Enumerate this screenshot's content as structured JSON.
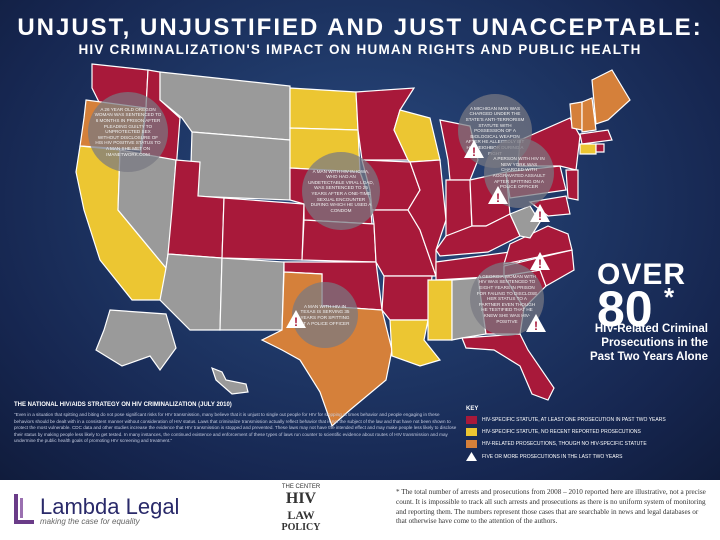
{
  "header": {
    "title": "UNJUST, UNJUSTIFIED AND JUST UNACCEPTABLE:",
    "subtitle": "HIV CRIMINALIZATION'S IMPACT ON HUMAN RIGHTS AND PUBLIC HEALTH"
  },
  "colors": {
    "red": "#a8193a",
    "orange": "#d5803a",
    "yellow": "#ecc632",
    "gray": "#9a9a9a",
    "background": "#1c2c58"
  },
  "map": {
    "legend_key": "state category shown by fill color",
    "states": {
      "red": [
        "WA",
        "ID",
        "MT",
        "ND",
        "MN",
        "NE",
        "KS",
        "OK",
        "MO",
        "AR",
        "LA",
        "MS",
        "TN",
        "KY",
        "IL",
        "IN",
        "OH",
        "VA",
        "NC",
        "SC",
        "FL",
        "MI",
        "MD",
        "NJ",
        "DE",
        "UT",
        "NV",
        "CO"
      ],
      "orange": [
        "OR",
        "TX",
        "GA",
        "NY",
        "PA",
        "IA",
        "KS_E"
      ],
      "yellow": [
        "WY",
        "SD",
        "WI",
        "CA",
        "AZ",
        "AL",
        "CT"
      ],
      "gray": [
        "NM",
        "NE_W",
        "WV",
        "ME",
        "VT",
        "NH",
        "MA",
        "RI",
        "AK",
        "HI",
        "ME2"
      ]
    }
  },
  "bubbles": [
    {
      "id": "oregon",
      "text": "A 26 YEAR OLD OREGON WOMAN WAS SENTENCED TO 6 MONTHS IN PRISON AFTER PLEADING GUILTY TO UNPROTECTED SEX WITHOUT DISCLOSURE OF HIS HIV POSITIVE STATUS TO A MAN SHE MET ON IMANETWORK.COM"
    },
    {
      "id": "iowa",
      "text": "A MAN WITH HIV IN IOWA, WHO HAD AN UNDETECTABLE VIRAL LOAD, WAS SENTENCED TO 25 YEARS AFTER A ONE-TIME SEXUAL ENCOUNTER DURING WHICH HE USED A CONDOM"
    },
    {
      "id": "michigan",
      "text": "A MICHIGAN MAN WAS CHARGED UNDER THE STATE'S ANTI-TERRORISM STATUTE WITH POSSESSION OF A BIOLOGICAL WEAPON AFTER HE ALLEGEDLY BIT HIS NEIGHBOR DURING A FIGHT"
    },
    {
      "id": "new-york",
      "text": "A PERSON WITH HIV IN NEW YORK WAS CHARGED WITH AGGRAVATED ASSAULT AFTER SPITTING ON A POLICE OFFICER"
    },
    {
      "id": "georgia",
      "text": "A GEORGIA WOMAN WITH HIV WAS SENTENCED TO EIGHT YEARS IN PRISON FOR FAILING TO DISCLOSE HER STATUS TO A PARTNER EVEN THOUGH HE TESTIFIED THAT HE KNEW SHE WAS HIV-POSITIVE"
    },
    {
      "id": "texas",
      "text": "A MAN WITH HIV IN TEXAS IS SERVING 35 YEARS FOR SPITTING AT A POLICE OFFICER"
    }
  ],
  "stat": {
    "over": "OVER",
    "number": "80",
    "asterisk": "*",
    "line1": "HIV-Related Criminal",
    "line2": "Prosecutions in the",
    "line3": "Past Two Years Alone"
  },
  "strategy": {
    "heading": "THE NATIONAL HIV/AIDS STRATEGY ON HIV CRIMINALIZATION (JULY 2010)",
    "body": "\"Even in a situation that spitting and biting do not pose significant risks for HIV transmission, many believe that it is unjust to single out people for HIV for stopping at times behavior and people engaging in these behaviors should be dealt with in a consistent manner without consideration of HIV status. Laws that criminalize transmission actually reflect behavior that is not the subject of the law and that have not been shown to protect the most vulnerable. CDC data and other studies increase the evidence that HIV transmission is stopped and prevented. These laws may not have the intended effect and may make people less likely to disclose their status by making people less likely to get tested. In many instances, the continued existence and enforcement of these types of laws run counter to scientific evidence about routes of HIV transmission and may undermine the public health goals of promoting HIV screening and treatment.\""
  },
  "key": {
    "heading": "KEY",
    "items": [
      {
        "label": "HIV-SPECIFIC STATUTE, AT LEAST ONE PROSECUTION IN PAST TWO YEARS",
        "color": "#a8193a"
      },
      {
        "label": "HIV-SPECIFIC STATUTE, NO RECENT REPORTED PROSECUTIONS",
        "color": "#ecc632"
      },
      {
        "label": "HIV-RELATED PROSECUTIONS, THOUGH NO HIV-SPECIFIC STATUTE",
        "color": "#d5803a"
      },
      {
        "label": "FIVE OR MORE PROSECUTIONS IN THE LAST TWO YEARS",
        "color": "warning"
      }
    ]
  },
  "footer": {
    "lambda_name": "Lambda Legal",
    "lambda_tagline": "making the case for equality",
    "center_top": "THE CENTER",
    "center_hiv": "HIV",
    "center_law": "LAW",
    "center_amp": "&",
    "center_policy": "POLICY",
    "footnote": "* The total number of arrests and prosecutions from 2008 – 2010 reported here are illustrative, not a precise count. It is impossible to track all such arrests and prosecutions as there is no uniform system of monitoring and reporting them. The numbers represent those cases that are searchable in news and legal databases or that otherwise have come to the attention of the authors."
  }
}
